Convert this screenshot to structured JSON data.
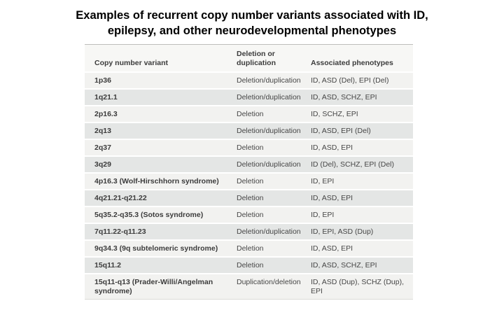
{
  "title": {
    "line1": "Examples of recurrent copy number variants associated with ID,",
    "line2": "epilepsy, and other neurodevelopmental phenotypes"
  },
  "table": {
    "columns": [
      "Copy number variant",
      "Deletion or duplication",
      "Associated phenotypes"
    ],
    "rows": [
      {
        "variant": "1p36",
        "del_dup": "Deletion/duplication",
        "phenotypes": "ID, ASD (Del), EPI (Del)"
      },
      {
        "variant": "1q21.1",
        "del_dup": "Deletion/duplication",
        "phenotypes": "ID, ASD, SCHZ, EPI"
      },
      {
        "variant": "2p16.3",
        "del_dup": "Deletion",
        "phenotypes": "ID, SCHZ, EPI"
      },
      {
        "variant": "2q13",
        "del_dup": "Deletion/duplication",
        "phenotypes": "ID, ASD, EPI (Del)"
      },
      {
        "variant": "2q37",
        "del_dup": "Deletion",
        "phenotypes": "ID, ASD, EPI"
      },
      {
        "variant": "3q29",
        "del_dup": "Deletion/duplication",
        "phenotypes": "ID (Del), SCHZ, EPI (Del)"
      },
      {
        "variant": "4p16.3 (Wolf-Hirschhorn syndrome)",
        "del_dup": "Deletion",
        "phenotypes": "ID, EPI"
      },
      {
        "variant": "4q21.21-q21.22",
        "del_dup": "Deletion",
        "phenotypes": "ID, ASD, EPI"
      },
      {
        "variant": "5q35.2-q35.3 (Sotos syndrome)",
        "del_dup": "Deletion",
        "phenotypes": "ID, EPI"
      },
      {
        "variant": "7q11.22-q11.23",
        "del_dup": "Deletion/duplication",
        "phenotypes": "ID, EPI, ASD (Dup)"
      },
      {
        "variant": "9q34.3 (9q subtelomeric syndrome)",
        "del_dup": "Deletion",
        "phenotypes": "ID, ASD, EPI"
      },
      {
        "variant": "15q11.2",
        "del_dup": "Deletion",
        "phenotypes": "ID, ASD, SCHZ, EPI"
      },
      {
        "variant": "15q11-q13 (Prader-Willi/Angelman syndrome)",
        "del_dup": "Duplication/deletion",
        "phenotypes": "ID, ASD (Dup), SCHZ (Dup), EPI"
      }
    ]
  },
  "colors": {
    "title_text": "#000000",
    "header_bg": "#f7f7f5",
    "row_light": "#f2f2f0",
    "row_dark": "#e4e6e5",
    "head_text": "#3c3c3c",
    "body_text": "#464646"
  }
}
